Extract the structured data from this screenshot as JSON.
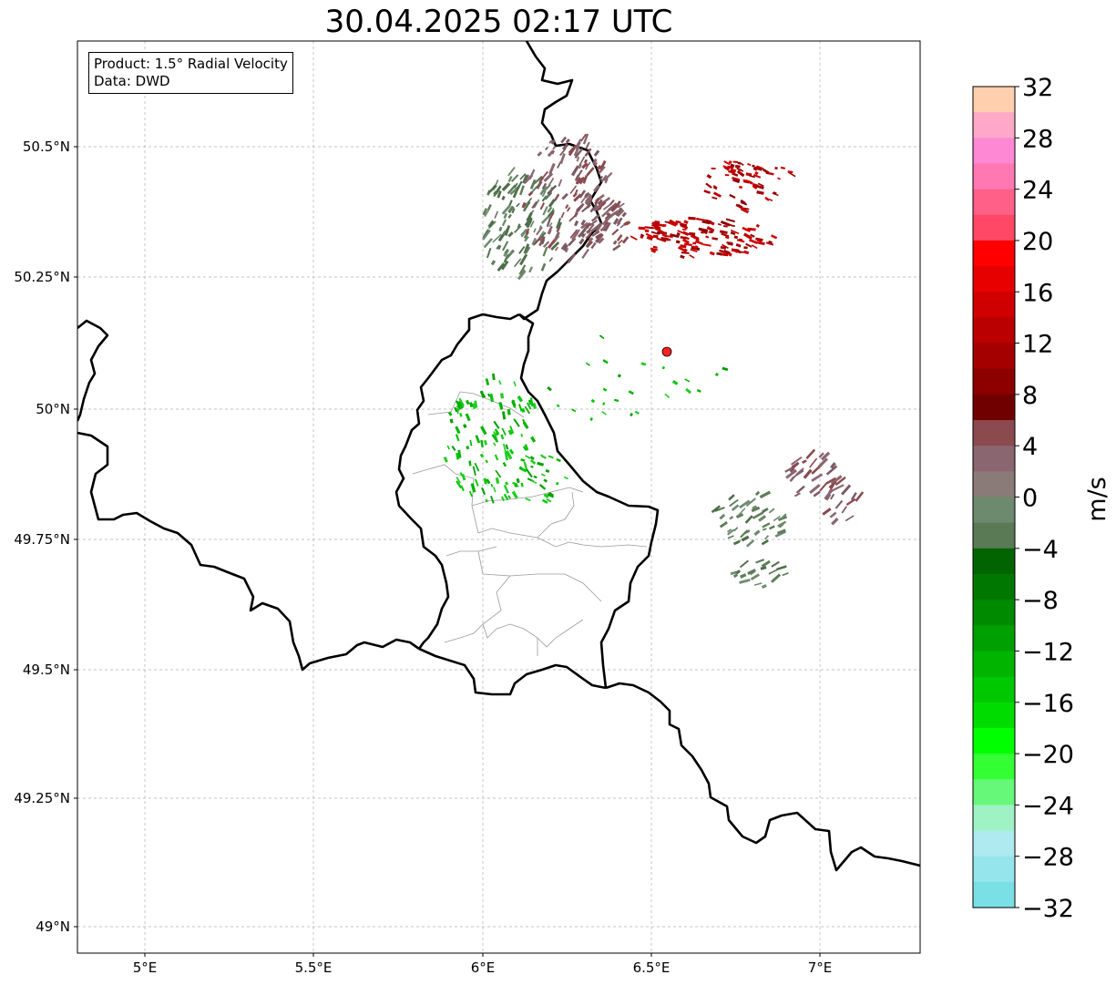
{
  "title": "30.04.2025 02:17 UTC",
  "infobox": {
    "line1": "Product: 1.5° Radial Velocity",
    "line2": "Data: DWD"
  },
  "map": {
    "lon_ticks": [
      "5°E",
      "5.5°E",
      "6°E",
      "6.5°E",
      "7°E"
    ],
    "lat_ticks": [
      "50.5°N",
      "50.25°N",
      "50°N",
      "49.75°N",
      "49.5°N",
      "49.25°N",
      "49°N"
    ],
    "radar_site": {
      "lon": 6.55,
      "lat": 50.11,
      "color": "#ff2020"
    }
  },
  "colorbar": {
    "label": "m/s",
    "ticks": [
      "32",
      "28",
      "24",
      "20",
      "16",
      "12",
      "8",
      "4",
      "0",
      "−4",
      "−8",
      "−12",
      "−16",
      "−20",
      "−24",
      "−28",
      "−32"
    ],
    "colors": [
      "#ffcfae",
      "#ffa8c8",
      "#ff88d4",
      "#ff78b2",
      "#ff6088",
      "#ff4866",
      "#ff0000",
      "#e60000",
      "#d00000",
      "#ba0000",
      "#a40000",
      "#8c0000",
      "#700000",
      "#8a4a4e",
      "#8a6670",
      "#8a7a78",
      "#6e8a6e",
      "#5a7a55",
      "#006400",
      "#007800",
      "#008a00",
      "#00a000",
      "#00b400",
      "#00c800",
      "#00dc00",
      "#00ff00",
      "#33ff33",
      "#66f878",
      "#9ef2c4",
      "#aeeaf0",
      "#94e6ec",
      "#7ae0e6"
    ]
  }
}
